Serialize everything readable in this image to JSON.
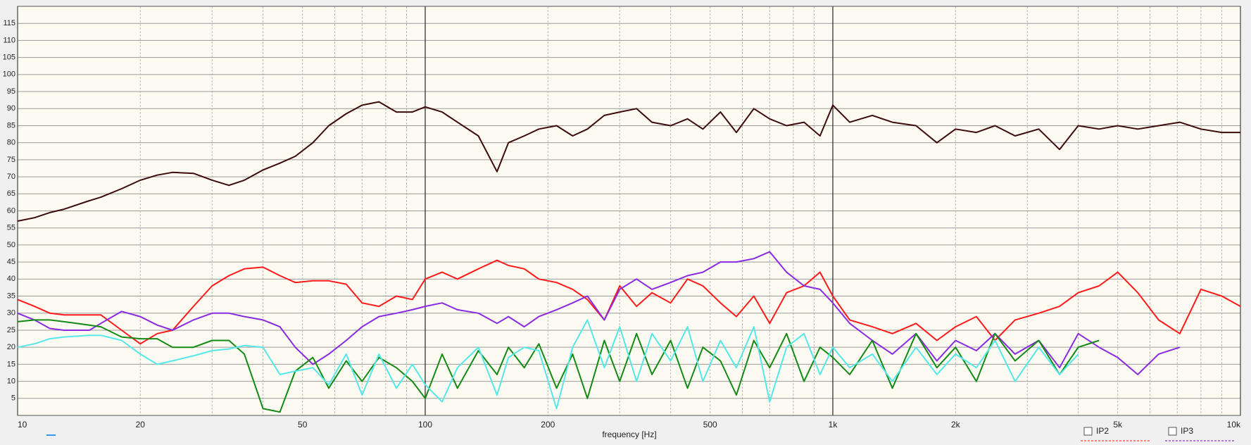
{
  "chart_data": {
    "type": "line",
    "x_label": "frequency [Hz]",
    "x_scale": "log",
    "x": [
      10,
      11,
      12,
      13,
      15,
      16,
      18,
      20,
      22,
      24,
      27,
      30,
      33,
      36,
      40,
      44,
      48,
      53,
      58,
      64,
      70,
      77,
      85,
      93,
      100,
      110,
      120,
      135,
      150,
      160,
      175,
      190,
      210,
      230,
      250,
      275,
      300,
      330,
      360,
      400,
      440,
      480,
      530,
      580,
      640,
      700,
      770,
      850,
      930,
      1000,
      1100,
      1250,
      1400,
      1600,
      1800,
      2000,
      2250,
      2500,
      2800,
      3200,
      3600,
      4000,
      4500,
      5000,
      5600,
      6300,
      7100,
      8000,
      9000,
      10000
    ],
    "xlim": [
      10,
      10000
    ],
    "xticks": [
      10,
      20,
      50,
      100,
      200,
      500,
      {
        "value": 1000,
        "label": "1k"
      },
      {
        "value": 2000,
        "label": "2k"
      },
      {
        "value": 5000,
        "label": "5k"
      },
      {
        "value": 10000,
        "label": "10k"
      }
    ],
    "x_minor_grid": [
      30,
      40,
      60,
      70,
      80,
      90,
      300,
      400,
      600,
      700,
      800,
      900,
      3000,
      4000,
      6000,
      7000,
      8000,
      9000
    ],
    "ylim": [
      0,
      120
    ],
    "yticks": [
      5,
      10,
      15,
      20,
      25,
      30,
      35,
      40,
      45,
      50,
      55,
      60,
      65,
      70,
      75,
      80,
      85,
      90,
      95,
      100,
      105,
      110,
      115
    ],
    "grid": true,
    "series": [
      {
        "color": "#3d0b0b",
        "values": [
          57,
          58,
          59.5,
          60.5,
          63,
          64,
          66.5,
          69,
          70.5,
          71.3,
          71,
          69,
          67.5,
          69,
          72,
          74,
          76,
          80,
          85,
          88.5,
          91,
          92,
          89,
          89,
          90.5,
          89,
          86,
          82,
          71.5,
          80,
          82,
          84,
          85,
          82,
          84,
          88,
          89,
          90,
          86,
          85,
          87,
          84,
          89,
          83,
          90,
          87,
          85,
          86,
          82,
          91,
          86,
          88,
          86,
          85,
          80,
          84,
          83,
          85,
          82,
          84,
          78,
          85,
          84,
          85,
          84,
          85,
          86,
          84,
          83,
          83
        ]
      },
      {
        "color": "#ff1a1a",
        "values": [
          34,
          32,
          30,
          29.5,
          29.5,
          29.5,
          25,
          21,
          24,
          25,
          32,
          38,
          41,
          43,
          43.5,
          41,
          39,
          39.5,
          39.5,
          38.5,
          33,
          32,
          35,
          34,
          40,
          42,
          40,
          43,
          45.5,
          44,
          43,
          40,
          39,
          37,
          34,
          28,
          38,
          32,
          36,
          33,
          40,
          38,
          33,
          29,
          35,
          27,
          36,
          38,
          42,
          35,
          28,
          26,
          24,
          27,
          22,
          26,
          29,
          22,
          28,
          30,
          32,
          36,
          38,
          42,
          36,
          28,
          24,
          37,
          35,
          32
        ]
      },
      {
        "color": "#8a2be2",
        "values": [
          30,
          28,
          25.5,
          25,
          25,
          27,
          30.5,
          29,
          26.5,
          25,
          28,
          30,
          30,
          29,
          28,
          26,
          20,
          15,
          18,
          22,
          26,
          29,
          30,
          31,
          32,
          33,
          31,
          30,
          27,
          29,
          26,
          29,
          31,
          33,
          35,
          28,
          37,
          40,
          37,
          39,
          41,
          42,
          45,
          45,
          46,
          48,
          42,
          38,
          37,
          33,
          27,
          22,
          18,
          24,
          16,
          22,
          19,
          24,
          18,
          22,
          14,
          24,
          20,
          17,
          12,
          18,
          20,
          null,
          null,
          null
        ]
      },
      {
        "color": "#138a13",
        "values": [
          27.5,
          28,
          28,
          27.5,
          26.5,
          26,
          23,
          22.5,
          22.5,
          20,
          20,
          22,
          22,
          18,
          2,
          1,
          13,
          17,
          8,
          16,
          10,
          17,
          14,
          10,
          5,
          18,
          8,
          19,
          12,
          20,
          14,
          21,
          8,
          18,
          5,
          22,
          10,
          24,
          12,
          22,
          8,
          20,
          16,
          6,
          22,
          14,
          24,
          10,
          20,
          17,
          12,
          22,
          8,
          24,
          14,
          20,
          10,
          24,
          16,
          22,
          12,
          20,
          22,
          null,
          null,
          null,
          null,
          null,
          null,
          null
        ]
      },
      {
        "color": "#55e8e8",
        "values": [
          20,
          21,
          22.5,
          23,
          23.5,
          23.5,
          22,
          18,
          15,
          16,
          17.5,
          19,
          19.5,
          20.5,
          20,
          12,
          13,
          14,
          9,
          18,
          6,
          18,
          8,
          15,
          9,
          4,
          14,
          20,
          6,
          17,
          20,
          19,
          2,
          20,
          28,
          14,
          26,
          10,
          24,
          16,
          26,
          10,
          22,
          14,
          26,
          4,
          20,
          24,
          12,
          20,
          14,
          18,
          10,
          20,
          12,
          18,
          14,
          22,
          10,
          20,
          12,
          18,
          null,
          null,
          null,
          null,
          null,
          null,
          null,
          null
        ]
      }
    ],
    "legend_items": [
      {
        "label": "IP2",
        "color": "#ff4444"
      },
      {
        "label": "IP3",
        "color": "#9933cc"
      }
    ]
  }
}
